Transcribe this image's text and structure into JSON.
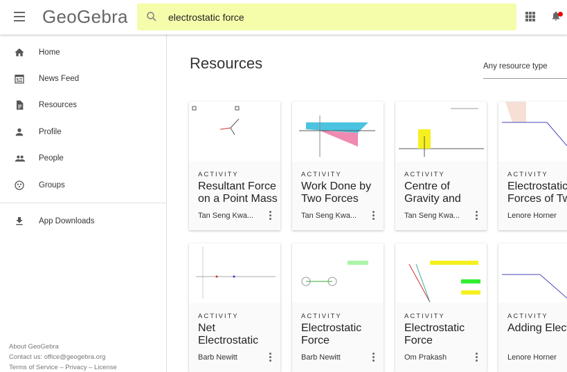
{
  "header": {
    "logo": "GeoGebra",
    "search_value": "electrostatic force",
    "search_bg": "#f5fcaa",
    "notification_color": "#ee0000"
  },
  "sidebar": {
    "items": [
      {
        "label": "Home",
        "icon": "home-icon"
      },
      {
        "label": "News Feed",
        "icon": "calendar-icon"
      },
      {
        "label": "Resources",
        "icon": "document-icon"
      },
      {
        "label": "Profile",
        "icon": "person-icon"
      },
      {
        "label": "People",
        "icon": "people-icon"
      },
      {
        "label": "Groups",
        "icon": "groups-icon"
      }
    ],
    "downloads": "App Downloads",
    "footer": {
      "about": "About GeoGebra",
      "contact": "Contact us: office@geogebra.org",
      "legal": "Terms of Service – Privacy – License"
    }
  },
  "main": {
    "title": "Resources",
    "filter": "Any resource type",
    "cards": [
      {
        "type": "ACTIVITY",
        "title": "Resultant Force on a Point Mass",
        "author": "Tan Seng Kwa..."
      },
      {
        "type": "ACTIVITY",
        "title": "Work Done by Two Forces",
        "author": "Tan Seng Kwa..."
      },
      {
        "type": "ACTIVITY",
        "title": "Centre of Gravity and Stability",
        "author": "Tan Seng Kwa..."
      },
      {
        "type": "ACTIVITY",
        "title": "Electrostatic Forces of Two Charges",
        "author": "Lenore Horner"
      },
      {
        "type": "ACTIVITY",
        "title": "Net Electrostatic",
        "author": "Barb Newitt"
      },
      {
        "type": "ACTIVITY",
        "title": "Electrostatic Force",
        "author": "Barb Newitt"
      },
      {
        "type": "ACTIVITY",
        "title": "Electrostatic Force",
        "author": "Om Prakash"
      },
      {
        "type": "ACTIVITY",
        "title": "Adding Electric",
        "author": "Lenore Horner"
      }
    ]
  }
}
